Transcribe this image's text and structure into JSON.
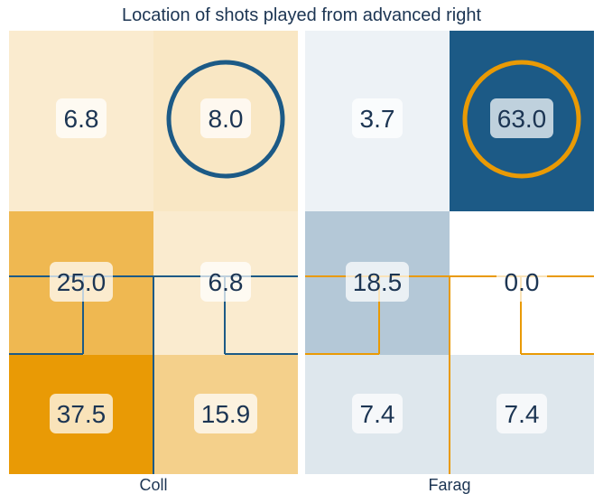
{
  "chart_data": {
    "type": "heatmap",
    "title": "Location of shots played from advanced right",
    "panels": [
      {
        "name": "Coll",
        "color_low": "#faebcf",
        "color_high": "#e99a05",
        "line_color": "#1c5a86",
        "ring_cell": [
          0,
          1
        ],
        "values": [
          [
            6.8,
            8.0
          ],
          [
            25.0,
            6.8
          ],
          [
            37.5,
            15.9
          ]
        ]
      },
      {
        "name": "Farag",
        "color_low": "#ffffff",
        "color_high": "#1c5a86",
        "line_color": "#e99a05",
        "ring_cell": [
          0,
          1
        ],
        "values": [
          [
            3.7,
            63.0
          ],
          [
            18.5,
            0.0
          ],
          [
            7.4,
            7.4
          ]
        ]
      }
    ]
  }
}
